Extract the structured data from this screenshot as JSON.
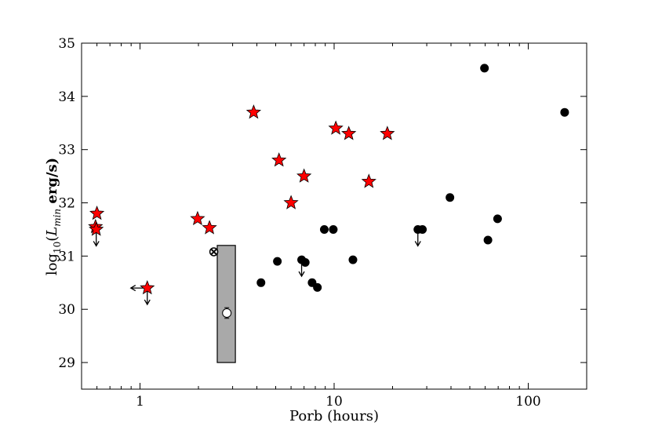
{
  "chart_data": {
    "type": "scatter",
    "xlabel": "Porb (hours)",
    "ylabel": {
      "prefix": "log",
      "sub10": "10",
      "open": "(",
      "L": "L",
      "Lsub": "min",
      "rest": " erg/s)"
    },
    "xscale": "log",
    "xlim": [
      0.5,
      200
    ],
    "ylim": [
      28.5,
      35
    ],
    "x_ticks": [
      1,
      10,
      100
    ],
    "x_tick_labels": [
      "1",
      "10",
      "100"
    ],
    "y_ticks": [
      29,
      30,
      31,
      32,
      33,
      34,
      35
    ],
    "y_tick_labels": [
      "29",
      "30",
      "31",
      "32",
      "33",
      "34",
      "35"
    ],
    "grid": false,
    "series": [
      {
        "marker": "star",
        "color": "#ff0000",
        "points": [
          {
            "x": 0.6,
            "y": 31.8
          },
          {
            "x": 0.59,
            "y": 31.55
          },
          {
            "x": 0.595,
            "y": 31.5,
            "upper_limit": true
          },
          {
            "x": 1.09,
            "y": 30.4,
            "upper_limit": true,
            "left_limit": true
          },
          {
            "x": 1.98,
            "y": 31.7
          },
          {
            "x": 2.28,
            "y": 31.53
          },
          {
            "x": 3.85,
            "y": 33.7
          },
          {
            "x": 5.2,
            "y": 32.8
          },
          {
            "x": 6.0,
            "y": 32.0
          },
          {
            "x": 7.0,
            "y": 32.5
          },
          {
            "x": 10.2,
            "y": 33.4
          },
          {
            "x": 11.9,
            "y": 33.3
          },
          {
            "x": 15.1,
            "y": 32.4
          },
          {
            "x": 18.8,
            "y": 33.3
          }
        ]
      },
      {
        "marker": "circle",
        "color": "#000000",
        "points": [
          {
            "x": 4.2,
            "y": 30.5
          },
          {
            "x": 5.1,
            "y": 30.9
          },
          {
            "x": 6.8,
            "y": 30.93,
            "upper_limit": true
          },
          {
            "x": 7.1,
            "y": 30.88
          },
          {
            "x": 7.7,
            "y": 30.5
          },
          {
            "x": 8.2,
            "y": 30.41
          },
          {
            "x": 8.9,
            "y": 31.5
          },
          {
            "x": 9.9,
            "y": 31.5
          },
          {
            "x": 12.5,
            "y": 30.93
          },
          {
            "x": 27.0,
            "y": 31.5,
            "upper_limit": true
          },
          {
            "x": 28.5,
            "y": 31.5
          },
          {
            "x": 39.5,
            "y": 32.1
          },
          {
            "x": 59.5,
            "y": 34.53
          },
          {
            "x": 62.0,
            "y": 31.3
          },
          {
            "x": 69.5,
            "y": 31.7
          },
          {
            "x": 154.0,
            "y": 33.7
          }
        ]
      },
      {
        "marker": "open-circle-errorbar",
        "color": "#ffffff",
        "points": [
          {
            "x": 2.8,
            "y": 29.93,
            "yerr": 0.1
          }
        ]
      },
      {
        "marker": "circled-x",
        "color": "#ffffff",
        "points": [
          {
            "x": 2.4,
            "y": 31.08
          }
        ]
      }
    ],
    "shaded_box": {
      "x_min": 2.5,
      "x_max": 3.1,
      "y_min": 29.0,
      "y_max": 31.2,
      "fill": "#a9a9a9"
    }
  }
}
